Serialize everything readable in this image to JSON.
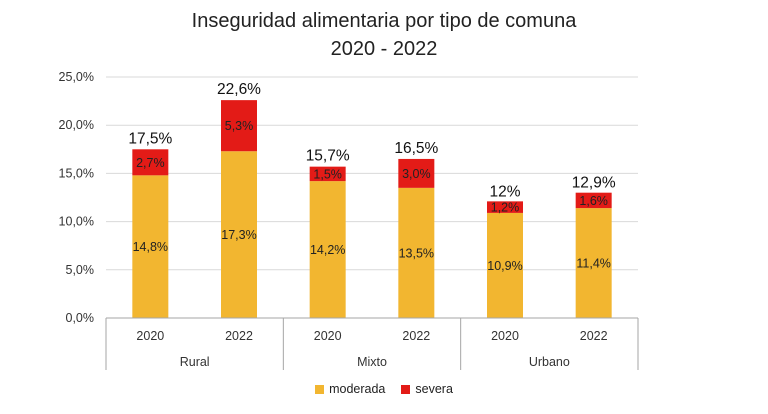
{
  "colors": {
    "moderada": "#f2b630",
    "severa": "#e31b17",
    "axis": "#a6a6a6",
    "grid": "#d9d9d9"
  },
  "chart_data": {
    "type": "bar",
    "stacked": true,
    "title_line1": "Inseguridad alimentaria por tipo de comuna",
    "title_line2": "2020 - 2022",
    "groups": [
      "Rural",
      "Mixto",
      "Urbano"
    ],
    "categories": [
      "2020",
      "2022",
      "2020",
      "2022",
      "2020",
      "2022"
    ],
    "series": [
      {
        "name": "moderada",
        "values": [
          14.8,
          17.3,
          14.2,
          13.5,
          10.9,
          11.4
        ],
        "labels": [
          "14,8%",
          "17,3%",
          "14,2%",
          "13,5%",
          "10,9%",
          "11,4%"
        ]
      },
      {
        "name": "severa",
        "values": [
          2.7,
          5.3,
          1.5,
          3.0,
          1.2,
          1.6
        ],
        "labels": [
          "2,7%",
          "5,3%",
          "1,5%",
          "3,0%",
          "1,2%",
          "1,6%"
        ]
      }
    ],
    "totals": [
      17.5,
      22.6,
      15.7,
      16.5,
      12.0,
      12.9
    ],
    "total_labels": [
      "17,5%",
      "22,6%",
      "15,7%",
      "16,5%",
      "12%",
      "12,9%"
    ],
    "ylim": [
      0,
      25
    ],
    "yticks": [
      0,
      5,
      10,
      15,
      20,
      25
    ],
    "ytick_labels": [
      "0,0%",
      "5,0%",
      "10,0%",
      "15,0%",
      "20,0%",
      "25,0%"
    ],
    "grid": true,
    "legend_position": "bottom"
  }
}
